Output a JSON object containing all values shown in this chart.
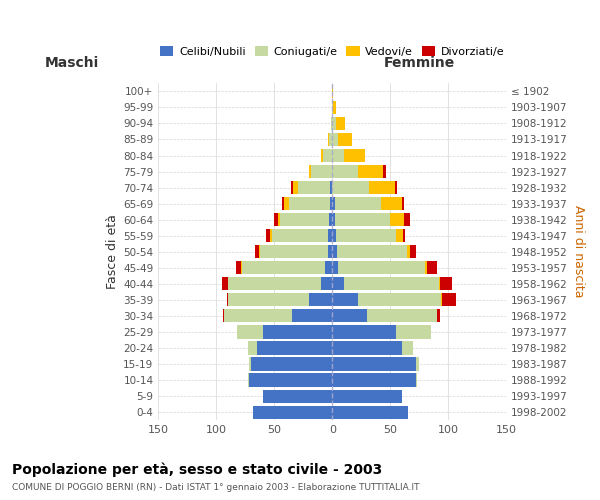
{
  "age_groups": [
    "0-4",
    "5-9",
    "10-14",
    "15-19",
    "20-24",
    "25-29",
    "30-34",
    "35-39",
    "40-44",
    "45-49",
    "50-54",
    "55-59",
    "60-64",
    "65-69",
    "70-74",
    "75-79",
    "80-84",
    "85-89",
    "90-94",
    "95-99",
    "100+"
  ],
  "birth_years": [
    "1998-2002",
    "1993-1997",
    "1988-1992",
    "1983-1987",
    "1978-1982",
    "1973-1977",
    "1968-1972",
    "1963-1967",
    "1958-1962",
    "1953-1957",
    "1948-1952",
    "1943-1947",
    "1938-1942",
    "1933-1937",
    "1928-1932",
    "1923-1927",
    "1918-1922",
    "1913-1917",
    "1908-1912",
    "1903-1907",
    "≤ 1902"
  ],
  "maschi": {
    "celibi": [
      68,
      60,
      72,
      70,
      65,
      60,
      35,
      20,
      10,
      6,
      4,
      4,
      3,
      2,
      2,
      0,
      0,
      0,
      0,
      0,
      0
    ],
    "coniugati": [
      0,
      0,
      1,
      2,
      8,
      22,
      58,
      70,
      80,
      72,
      58,
      48,
      42,
      35,
      28,
      18,
      8,
      3,
      1,
      0,
      0
    ],
    "vedovi": [
      0,
      0,
      0,
      0,
      0,
      0,
      0,
      0,
      0,
      1,
      1,
      2,
      2,
      5,
      4,
      2,
      2,
      1,
      0,
      0,
      0
    ],
    "divorziati": [
      0,
      0,
      0,
      0,
      0,
      0,
      1,
      1,
      5,
      4,
      4,
      3,
      3,
      1,
      2,
      0,
      0,
      0,
      0,
      0,
      0
    ]
  },
  "femmine": {
    "nubili": [
      65,
      60,
      72,
      72,
      60,
      55,
      30,
      22,
      10,
      5,
      4,
      3,
      2,
      2,
      0,
      0,
      0,
      0,
      0,
      0,
      0
    ],
    "coniugate": [
      0,
      0,
      1,
      3,
      10,
      30,
      60,
      72,
      82,
      75,
      60,
      52,
      48,
      40,
      32,
      22,
      10,
      5,
      3,
      1,
      0
    ],
    "vedove": [
      0,
      0,
      0,
      0,
      0,
      0,
      0,
      1,
      1,
      2,
      3,
      6,
      12,
      18,
      22,
      22,
      18,
      12,
      8,
      2,
      1
    ],
    "divorziate": [
      0,
      0,
      0,
      0,
      0,
      0,
      3,
      12,
      10,
      8,
      5,
      2,
      5,
      2,
      2,
      2,
      0,
      0,
      0,
      0,
      0
    ]
  },
  "color_celibi": "#4472c4",
  "color_coniugati": "#c5d9a0",
  "color_vedovi": "#ffc000",
  "color_divorziati": "#cc0000",
  "title": "Popolazione per età, sesso e stato civile - 2003",
  "subtitle": "COMUNE DI POGGIO BERNI (RN) - Dati ISTAT 1° gennaio 2003 - Elaborazione TUTTITALIA.IT",
  "xlabel_maschi": "Maschi",
  "xlabel_femmine": "Femmine",
  "ylabel_left": "Fasce di età",
  "ylabel_right": "Anni di nascita",
  "xlim": 150,
  "bg_color": "#ffffff",
  "grid_color": "#cccccc"
}
